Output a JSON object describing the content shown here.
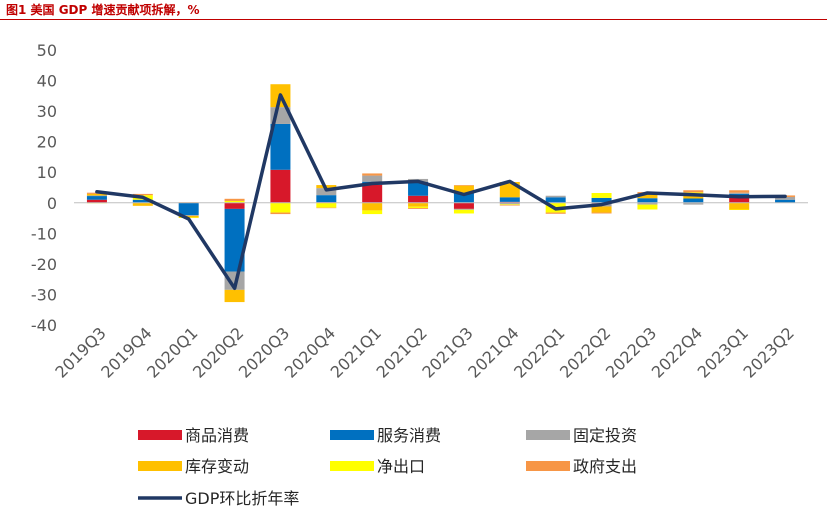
{
  "figure_title": "图1  美国 GDP 增速贡献项拆解，%",
  "colors": {
    "title": "#c00000",
    "商品消费": "#d7182a",
    "服务消费": "#0070c0",
    "固定投资": "#a6a6a6",
    "库存变动": "#ffc000",
    "净出口": "#ffff00",
    "政府支出": "#f79646",
    "line": "#203864"
  },
  "chart_data": {
    "type": "bar",
    "stacked": true,
    "categories": [
      "2019Q3",
      "2019Q4",
      "2020Q1",
      "2020Q2",
      "2020Q3",
      "2020Q4",
      "2021Q1",
      "2021Q2",
      "2021Q3",
      "2021Q4",
      "2022Q1",
      "2022Q2",
      "2022Q3",
      "2022Q4",
      "2023Q1",
      "2023Q2"
    ],
    "ylim": [
      -40,
      50
    ],
    "yticks": [
      -40,
      -30,
      -20,
      -10,
      0,
      10,
      20,
      30,
      40,
      50
    ],
    "grid": false,
    "legend_position": "bottom",
    "series": [
      {
        "name": "商品消费",
        "type": "bar",
        "color": "#d7182a",
        "values": [
          1.0,
          0.1,
          0.0,
          -2.0,
          10.8,
          0.2,
          5.9,
          2.3,
          -2.0,
          0.3,
          -0.0,
          -0.2,
          -0.1,
          0.1,
          1.7,
          0.0
        ]
      },
      {
        "name": "服务消费",
        "type": "bar",
        "color": "#0070c0",
        "values": [
          1.2,
          0.9,
          -4.0,
          -20.5,
          15.0,
          2.3,
          1.0,
          4.5,
          3.2,
          1.5,
          1.8,
          1.6,
          1.5,
          1.3,
          1.2,
          1.0
        ]
      },
      {
        "name": "固定投资",
        "type": "bar",
        "color": "#a6a6a6",
        "values": [
          0.2,
          0.0,
          -0.3,
          -6.0,
          5.5,
          2.3,
          2.0,
          1.0,
          -0.3,
          -0.5,
          0.5,
          -1.0,
          -0.5,
          -0.6,
          0.4,
          0.9
        ]
      },
      {
        "name": "库存变动",
        "type": "bar",
        "color": "#ffc000",
        "values": [
          0.5,
          -1.0,
          -0.5,
          -4.0,
          7.5,
          1.0,
          -2.5,
          -1.3,
          2.4,
          5.0,
          0.0,
          -2.0,
          1.5,
          1.5,
          -2.2,
          0.0
        ]
      },
      {
        "name": "净出口",
        "type": "bar",
        "color": "#ffff00",
        "values": [
          -0.1,
          1.5,
          -0.1,
          0.6,
          -3.2,
          -1.6,
          -1.2,
          -0.4,
          -1.2,
          -0.2,
          -3.2,
          1.6,
          -1.6,
          0.5,
          -0.1,
          0.0
        ]
      },
      {
        "name": "政府支出",
        "type": "bar",
        "color": "#f79646",
        "values": [
          0.4,
          0.4,
          0.2,
          0.7,
          -0.5,
          -0.1,
          0.7,
          -0.3,
          0.2,
          -0.2,
          -0.4,
          -0.3,
          0.5,
          0.7,
          0.8,
          0.5
        ]
      },
      {
        "name": "GDP环比折年率",
        "type": "line",
        "color": "#203864",
        "values": [
          3.6,
          1.8,
          -5.3,
          -28.0,
          35.3,
          4.2,
          6.3,
          7.0,
          2.7,
          7.0,
          -2.0,
          -0.6,
          3.2,
          2.6,
          2.0,
          2.1
        ]
      }
    ]
  }
}
